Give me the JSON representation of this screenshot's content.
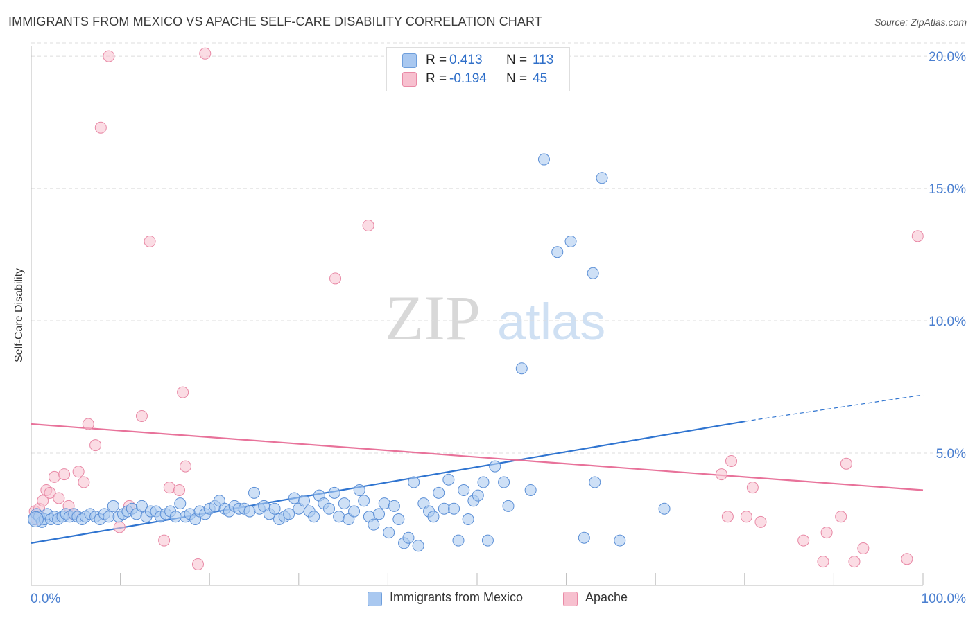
{
  "header": {
    "title": "IMMIGRANTS FROM MEXICO VS APACHE SELF-CARE DISABILITY CORRELATION CHART",
    "source": "Source: ZipAtlas.com"
  },
  "watermark": {
    "zip": "ZIP",
    "atlas": "atlas"
  },
  "legend": {
    "rows": [
      {
        "r_label": "R =",
        "r_value": "0.413",
        "n_label": "N =",
        "n_value": "113",
        "color": "#a9c8f0",
        "border": "#6f9fdc"
      },
      {
        "r_label": "R =",
        "r_value": "-0.194",
        "n_label": "N =",
        "n_value": "45",
        "color": "#f7c0cf",
        "border": "#e98aa6"
      }
    ]
  },
  "bottom_legend": [
    {
      "label": "Immigrants from Mexico"
    },
    {
      "label": "Apache"
    }
  ],
  "colors": {
    "blue_fill": "#aecbf0",
    "blue_stroke": "#5b8fd6",
    "blue_line": "#2f74d0",
    "pink_fill": "#f8c4d2",
    "pink_stroke": "#e888a5",
    "pink_line": "#e8729a",
    "tick_label": "#4a7fd0",
    "grid": "#dcdcdc"
  },
  "chart_data": {
    "type": "scatter",
    "title": "IMMIGRANTS FROM MEXICO VS APACHE SELF-CARE DISABILITY CORRELATION CHART",
    "xlabel": "",
    "ylabel": "Self-Care Disability",
    "xlim": [
      0,
      100
    ],
    "ylim": [
      0,
      20.5
    ],
    "x_tick_labels": [
      {
        "value": 0,
        "label": "0.0%"
      },
      {
        "value": 100,
        "label": "100.0%"
      }
    ],
    "y_tick_labels": [
      {
        "value": 5,
        "label": "5.0%"
      },
      {
        "value": 10,
        "label": "10.0%"
      },
      {
        "value": 15,
        "label": "15.0%"
      },
      {
        "value": 20,
        "label": "20.0%"
      }
    ],
    "grid": true,
    "legend_position": "top-center",
    "series": [
      {
        "name": "Immigrants from Mexico",
        "points": [
          [
            0.3,
            2.5
          ],
          [
            0.6,
            2.7
          ],
          [
            0.9,
            2.6
          ],
          [
            1.2,
            2.4
          ],
          [
            1.5,
            2.5
          ],
          [
            1.8,
            2.7
          ],
          [
            2.2,
            2.5
          ],
          [
            2.6,
            2.6
          ],
          [
            3.0,
            2.5
          ],
          [
            3.5,
            2.6
          ],
          [
            3.9,
            2.7
          ],
          [
            4.3,
            2.6
          ],
          [
            4.8,
            2.7
          ],
          [
            5.2,
            2.6
          ],
          [
            5.7,
            2.5
          ],
          [
            6.1,
            2.6
          ],
          [
            6.6,
            2.7
          ],
          [
            7.2,
            2.6
          ],
          [
            7.7,
            2.5
          ],
          [
            8.2,
            2.7
          ],
          [
            8.7,
            2.6
          ],
          [
            9.2,
            3.0
          ],
          [
            9.8,
            2.6
          ],
          [
            10.3,
            2.7
          ],
          [
            10.8,
            2.8
          ],
          [
            11.3,
            2.9
          ],
          [
            11.8,
            2.7
          ],
          [
            12.4,
            3.0
          ],
          [
            12.9,
            2.6
          ],
          [
            13.4,
            2.8
          ],
          [
            14.0,
            2.8
          ],
          [
            14.5,
            2.6
          ],
          [
            15.1,
            2.7
          ],
          [
            15.6,
            2.8
          ],
          [
            16.2,
            2.6
          ],
          [
            16.7,
            3.1
          ],
          [
            17.3,
            2.6
          ],
          [
            17.8,
            2.7
          ],
          [
            18.4,
            2.5
          ],
          [
            18.9,
            2.8
          ],
          [
            19.5,
            2.7
          ],
          [
            20.0,
            2.9
          ],
          [
            20.6,
            3.0
          ],
          [
            21.1,
            3.2
          ],
          [
            21.7,
            2.9
          ],
          [
            22.2,
            2.8
          ],
          [
            22.8,
            3.0
          ],
          [
            23.3,
            2.9
          ],
          [
            23.9,
            2.9
          ],
          [
            24.5,
            2.8
          ],
          [
            25.0,
            3.5
          ],
          [
            25.6,
            2.9
          ],
          [
            26.1,
            3.0
          ],
          [
            26.7,
            2.7
          ],
          [
            27.3,
            2.9
          ],
          [
            27.8,
            2.5
          ],
          [
            28.4,
            2.6
          ],
          [
            28.9,
            2.7
          ],
          [
            29.5,
            3.3
          ],
          [
            30.0,
            2.9
          ],
          [
            30.6,
            3.2
          ],
          [
            31.2,
            2.8
          ],
          [
            31.7,
            2.6
          ],
          [
            32.3,
            3.4
          ],
          [
            32.8,
            3.1
          ],
          [
            33.4,
            2.9
          ],
          [
            34.0,
            3.5
          ],
          [
            34.5,
            2.6
          ],
          [
            35.1,
            3.1
          ],
          [
            35.6,
            2.5
          ],
          [
            36.2,
            2.8
          ],
          [
            36.8,
            3.6
          ],
          [
            37.3,
            3.2
          ],
          [
            37.9,
            2.6
          ],
          [
            38.4,
            2.3
          ],
          [
            39.0,
            2.7
          ],
          [
            39.6,
            3.1
          ],
          [
            40.1,
            2.0
          ],
          [
            40.7,
            3.0
          ],
          [
            41.2,
            2.5
          ],
          [
            41.8,
            1.6
          ],
          [
            42.3,
            1.8
          ],
          [
            42.9,
            3.9
          ],
          [
            43.4,
            1.5
          ],
          [
            44.0,
            3.1
          ],
          [
            44.6,
            2.8
          ],
          [
            45.1,
            2.6
          ],
          [
            45.7,
            3.5
          ],
          [
            46.3,
            2.9
          ],
          [
            46.8,
            4.0
          ],
          [
            47.4,
            2.9
          ],
          [
            47.9,
            1.7
          ],
          [
            48.5,
            3.6
          ],
          [
            49.0,
            2.5
          ],
          [
            49.6,
            3.2
          ],
          [
            50.1,
            3.4
          ],
          [
            50.7,
            3.9
          ],
          [
            51.2,
            1.7
          ],
          [
            52.0,
            4.5
          ],
          [
            53.0,
            3.9
          ],
          [
            53.5,
            3.0
          ],
          [
            55.0,
            8.2
          ],
          [
            56.0,
            3.6
          ],
          [
            57.5,
            16.1
          ],
          [
            59.0,
            12.6
          ],
          [
            60.5,
            13.0
          ],
          [
            62.0,
            1.8
          ],
          [
            63.0,
            11.8
          ],
          [
            63.2,
            3.9
          ],
          [
            64.0,
            15.4
          ],
          [
            66.0,
            1.7
          ],
          [
            71.0,
            2.9
          ],
          [
            0.5,
            2.5
          ]
        ]
      },
      {
        "name": "Apache",
        "points": [
          [
            0.4,
            2.8
          ],
          [
            0.6,
            2.5
          ],
          [
            0.9,
            2.9
          ],
          [
            1.3,
            3.2
          ],
          [
            1.7,
            3.6
          ],
          [
            2.1,
            3.5
          ],
          [
            2.6,
            4.1
          ],
          [
            3.1,
            3.3
          ],
          [
            3.7,
            4.2
          ],
          [
            4.2,
            3.0
          ],
          [
            4.7,
            2.7
          ],
          [
            5.3,
            4.3
          ],
          [
            5.9,
            3.9
          ],
          [
            6.4,
            6.1
          ],
          [
            7.2,
            5.3
          ],
          [
            7.8,
            17.3
          ],
          [
            8.7,
            20.0
          ],
          [
            9.9,
            2.2
          ],
          [
            11.0,
            3.0
          ],
          [
            12.4,
            6.4
          ],
          [
            13.3,
            13.0
          ],
          [
            14.9,
            1.7
          ],
          [
            15.5,
            3.7
          ],
          [
            16.6,
            3.6
          ],
          [
            17.0,
            7.3
          ],
          [
            17.3,
            4.5
          ],
          [
            18.7,
            0.8
          ],
          [
            19.5,
            20.1
          ],
          [
            34.1,
            11.6
          ],
          [
            37.8,
            13.6
          ],
          [
            77.4,
            4.2
          ],
          [
            78.1,
            2.6
          ],
          [
            78.5,
            4.7
          ],
          [
            80.2,
            2.6
          ],
          [
            80.9,
            3.7
          ],
          [
            81.8,
            2.4
          ],
          [
            86.6,
            1.7
          ],
          [
            88.8,
            0.9
          ],
          [
            89.2,
            2.0
          ],
          [
            90.8,
            2.6
          ],
          [
            91.4,
            4.6
          ],
          [
            92.3,
            0.9
          ],
          [
            93.3,
            1.4
          ],
          [
            98.2,
            1.0
          ],
          [
            99.4,
            13.2
          ]
        ]
      }
    ],
    "trend_lines": [
      {
        "series": "Immigrants from Mexico",
        "x0": 0,
        "y0": 1.6,
        "x1": 80,
        "y1": 6.2,
        "dashed_to_x": 100,
        "dashed_to_y": 7.2
      },
      {
        "series": "Apache",
        "x0": 0,
        "y0": 6.1,
        "x1": 100,
        "y1": 3.6
      }
    ]
  }
}
